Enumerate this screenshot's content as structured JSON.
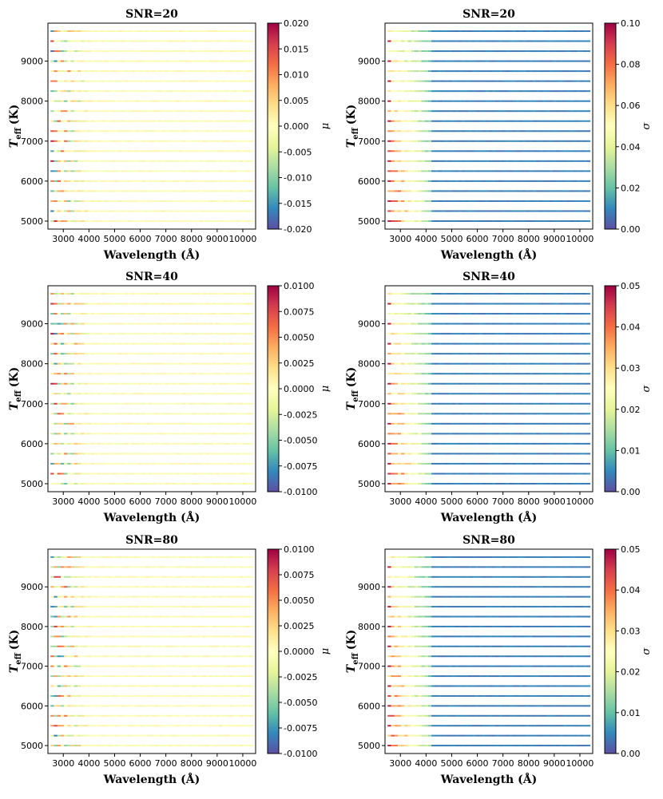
{
  "chart_data": [
    {
      "type": "heatmap",
      "title": "SNR=20",
      "xlabel": "Wavelength (Å)",
      "ylabel_main": "T",
      "ylabel_sub": "eff",
      "ylabel_unit": "(K)",
      "colorbar_label": "μ",
      "colormap": "Spectral_r",
      "xlim": [
        2400,
        10500
      ],
      "ylim": [
        4800,
        9950
      ],
      "x_ticks": [
        3000,
        4000,
        5000,
        6000,
        7000,
        8000,
        9000,
        10000
      ],
      "y_ticks": [
        5000,
        6000,
        7000,
        8000,
        9000
      ],
      "colorbar_range": [
        -0.02,
        0.02
      ],
      "colorbar_ticks": [
        "-0.020",
        "-0.015",
        "-0.010",
        "-0.005",
        "0.000",
        "0.005",
        "0.010",
        "0.015",
        "0.020"
      ],
      "teff_rows": [
        5000,
        5250,
        5500,
        5750,
        6000,
        6250,
        6500,
        6750,
        7000,
        7250,
        7500,
        7750,
        8000,
        8250,
        8500,
        8750,
        9000,
        9250,
        9500,
        9750
      ]
    },
    {
      "type": "heatmap",
      "title": "SNR=20",
      "xlabel": "Wavelength (Å)",
      "ylabel_main": "T",
      "ylabel_sub": "eff",
      "ylabel_unit": "(K)",
      "colorbar_label": "σ",
      "colormap": "Spectral_r",
      "xlim": [
        2400,
        10500
      ],
      "ylim": [
        4800,
        9950
      ],
      "x_ticks": [
        3000,
        4000,
        5000,
        6000,
        7000,
        8000,
        9000,
        10000
      ],
      "y_ticks": [
        5000,
        6000,
        7000,
        8000,
        9000
      ],
      "colorbar_range": [
        0,
        0.1
      ],
      "colorbar_ticks": [
        "0.00",
        "0.02",
        "0.04",
        "0.06",
        "0.08",
        "0.10"
      ],
      "teff_rows": [
        5000,
        5250,
        5500,
        5750,
        6000,
        6250,
        6500,
        6750,
        7000,
        7250,
        7500,
        7750,
        8000,
        8250,
        8500,
        8750,
        9000,
        9250,
        9500,
        9750
      ]
    },
    {
      "type": "heatmap",
      "title": "SNR=40",
      "xlabel": "Wavelength (Å)",
      "ylabel_main": "T",
      "ylabel_sub": "eff",
      "ylabel_unit": "(K)",
      "colorbar_label": "μ",
      "colormap": "Spectral_r",
      "xlim": [
        2400,
        10500
      ],
      "ylim": [
        4800,
        9950
      ],
      "x_ticks": [
        3000,
        4000,
        5000,
        6000,
        7000,
        8000,
        9000,
        10000
      ],
      "y_ticks": [
        5000,
        6000,
        7000,
        8000,
        9000
      ],
      "colorbar_range": [
        -0.01,
        0.01
      ],
      "colorbar_ticks": [
        "-0.0100",
        "-0.0075",
        "-0.0050",
        "-0.0025",
        "0.0000",
        "0.0025",
        "0.0050",
        "0.0075",
        "0.0100"
      ],
      "teff_rows": [
        5000,
        5250,
        5500,
        5750,
        6000,
        6250,
        6500,
        6750,
        7000,
        7250,
        7500,
        7750,
        8000,
        8250,
        8500,
        8750,
        9000,
        9250,
        9500,
        9750
      ]
    },
    {
      "type": "heatmap",
      "title": "SNR=40",
      "xlabel": "Wavelength (Å)",
      "ylabel_main": "T",
      "ylabel_sub": "eff",
      "ylabel_unit": "(K)",
      "colorbar_label": "σ",
      "colormap": "Spectral_r",
      "xlim": [
        2400,
        10500
      ],
      "ylim": [
        4800,
        9950
      ],
      "x_ticks": [
        3000,
        4000,
        5000,
        6000,
        7000,
        8000,
        9000,
        10000
      ],
      "y_ticks": [
        5000,
        6000,
        7000,
        8000,
        9000
      ],
      "colorbar_range": [
        0,
        0.05
      ],
      "colorbar_ticks": [
        "0.00",
        "0.01",
        "0.02",
        "0.03",
        "0.04",
        "0.05"
      ],
      "teff_rows": [
        5000,
        5250,
        5500,
        5750,
        6000,
        6250,
        6500,
        6750,
        7000,
        7250,
        7500,
        7750,
        8000,
        8250,
        8500,
        8750,
        9000,
        9250,
        9500,
        9750
      ]
    },
    {
      "type": "heatmap",
      "title": "SNR=80",
      "xlabel": "Wavelength (Å)",
      "ylabel_main": "T",
      "ylabel_sub": "eff",
      "ylabel_unit": "(K)",
      "colorbar_label": "μ",
      "colormap": "Spectral_r",
      "xlim": [
        2400,
        10500
      ],
      "ylim": [
        4800,
        9950
      ],
      "x_ticks": [
        3000,
        4000,
        5000,
        6000,
        7000,
        8000,
        9000,
        10000
      ],
      "y_ticks": [
        5000,
        6000,
        7000,
        8000,
        9000
      ],
      "colorbar_range": [
        -0.01,
        0.01
      ],
      "colorbar_ticks": [
        "-0.0100",
        "-0.0075",
        "-0.0050",
        "-0.0025",
        "0.0000",
        "0.0025",
        "0.0050",
        "0.0075",
        "0.0100"
      ],
      "teff_rows": [
        5000,
        5250,
        5500,
        5750,
        6000,
        6250,
        6500,
        6750,
        7000,
        7250,
        7500,
        7750,
        8000,
        8250,
        8500,
        8750,
        9000,
        9250,
        9500,
        9750
      ]
    },
    {
      "type": "heatmap",
      "title": "SNR=80",
      "xlabel": "Wavelength (Å)",
      "ylabel_main": "T",
      "ylabel_sub": "eff",
      "ylabel_unit": "(K)",
      "colorbar_label": "σ",
      "colormap": "Spectral_r",
      "xlim": [
        2400,
        10500
      ],
      "ylim": [
        4800,
        9950
      ],
      "x_ticks": [
        3000,
        4000,
        5000,
        6000,
        7000,
        8000,
        9000,
        10000
      ],
      "y_ticks": [
        5000,
        6000,
        7000,
        8000,
        9000
      ],
      "colorbar_range": [
        0,
        0.05
      ],
      "colorbar_ticks": [
        "0.00",
        "0.01",
        "0.02",
        "0.03",
        "0.04",
        "0.05"
      ],
      "teff_rows": [
        5000,
        5250,
        5500,
        5750,
        6000,
        6250,
        6500,
        6750,
        7000,
        7250,
        7500,
        7750,
        8000,
        8250,
        8500,
        8750,
        9000,
        9250,
        9500,
        9750
      ]
    }
  ]
}
